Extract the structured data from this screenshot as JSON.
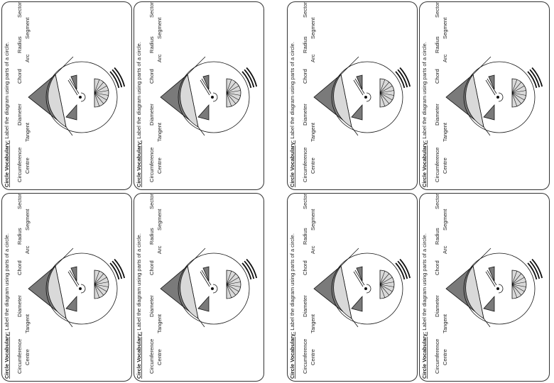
{
  "worksheet": {
    "card_count": 8,
    "heading_bold": "Circle Vocabulary:",
    "heading_rest": " Label the diagram using parts of a circle.",
    "words_row1": [
      "Circumference",
      "Diameter",
      "Chord",
      "Radius",
      "Sector"
    ],
    "words_row2": [
      "Centre",
      "Tangent",
      "Arc",
      "Segment"
    ]
  },
  "colors": {
    "dark_fill": "#7a7a7a",
    "light_fill": "#d9d9d9",
    "stroke": "#111111"
  }
}
